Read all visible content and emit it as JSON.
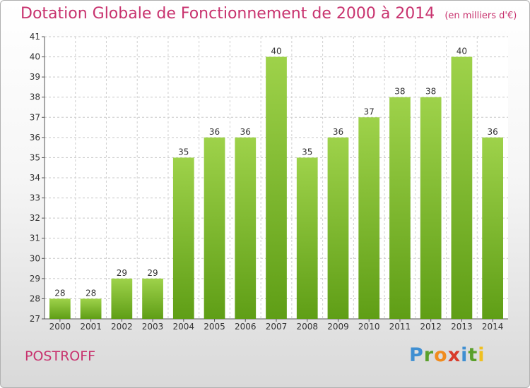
{
  "title": "Dotation Globale de Fonctionnement de 2000 à 2014",
  "subtitle": "(en milliers d'€)",
  "commune": "POSTROFF",
  "logo": {
    "letters": [
      "P",
      "r",
      "o",
      "x",
      "i",
      "t",
      "i"
    ],
    "colors": [
      "#3f8fd2",
      "#5aa02c",
      "#f08c1e",
      "#d83a2a",
      "#3f8fd2",
      "#5aa02c",
      "#f0c020"
    ]
  },
  "chart_data": {
    "type": "bar",
    "categories": [
      "2000",
      "2001",
      "2002",
      "2003",
      "2004",
      "2005",
      "2006",
      "2007",
      "2008",
      "2009",
      "2010",
      "2011",
      "2012",
      "2013",
      "2014"
    ],
    "values": [
      28,
      28,
      29,
      29,
      35,
      36,
      36,
      40,
      35,
      36,
      37,
      38,
      38,
      40,
      36
    ],
    "ylim": [
      27,
      41
    ],
    "yticks": [
      27,
      28,
      29,
      30,
      31,
      32,
      33,
      34,
      35,
      36,
      37,
      38,
      39,
      40,
      41
    ],
    "grid": true,
    "bar_color": "#7cbf2a"
  }
}
